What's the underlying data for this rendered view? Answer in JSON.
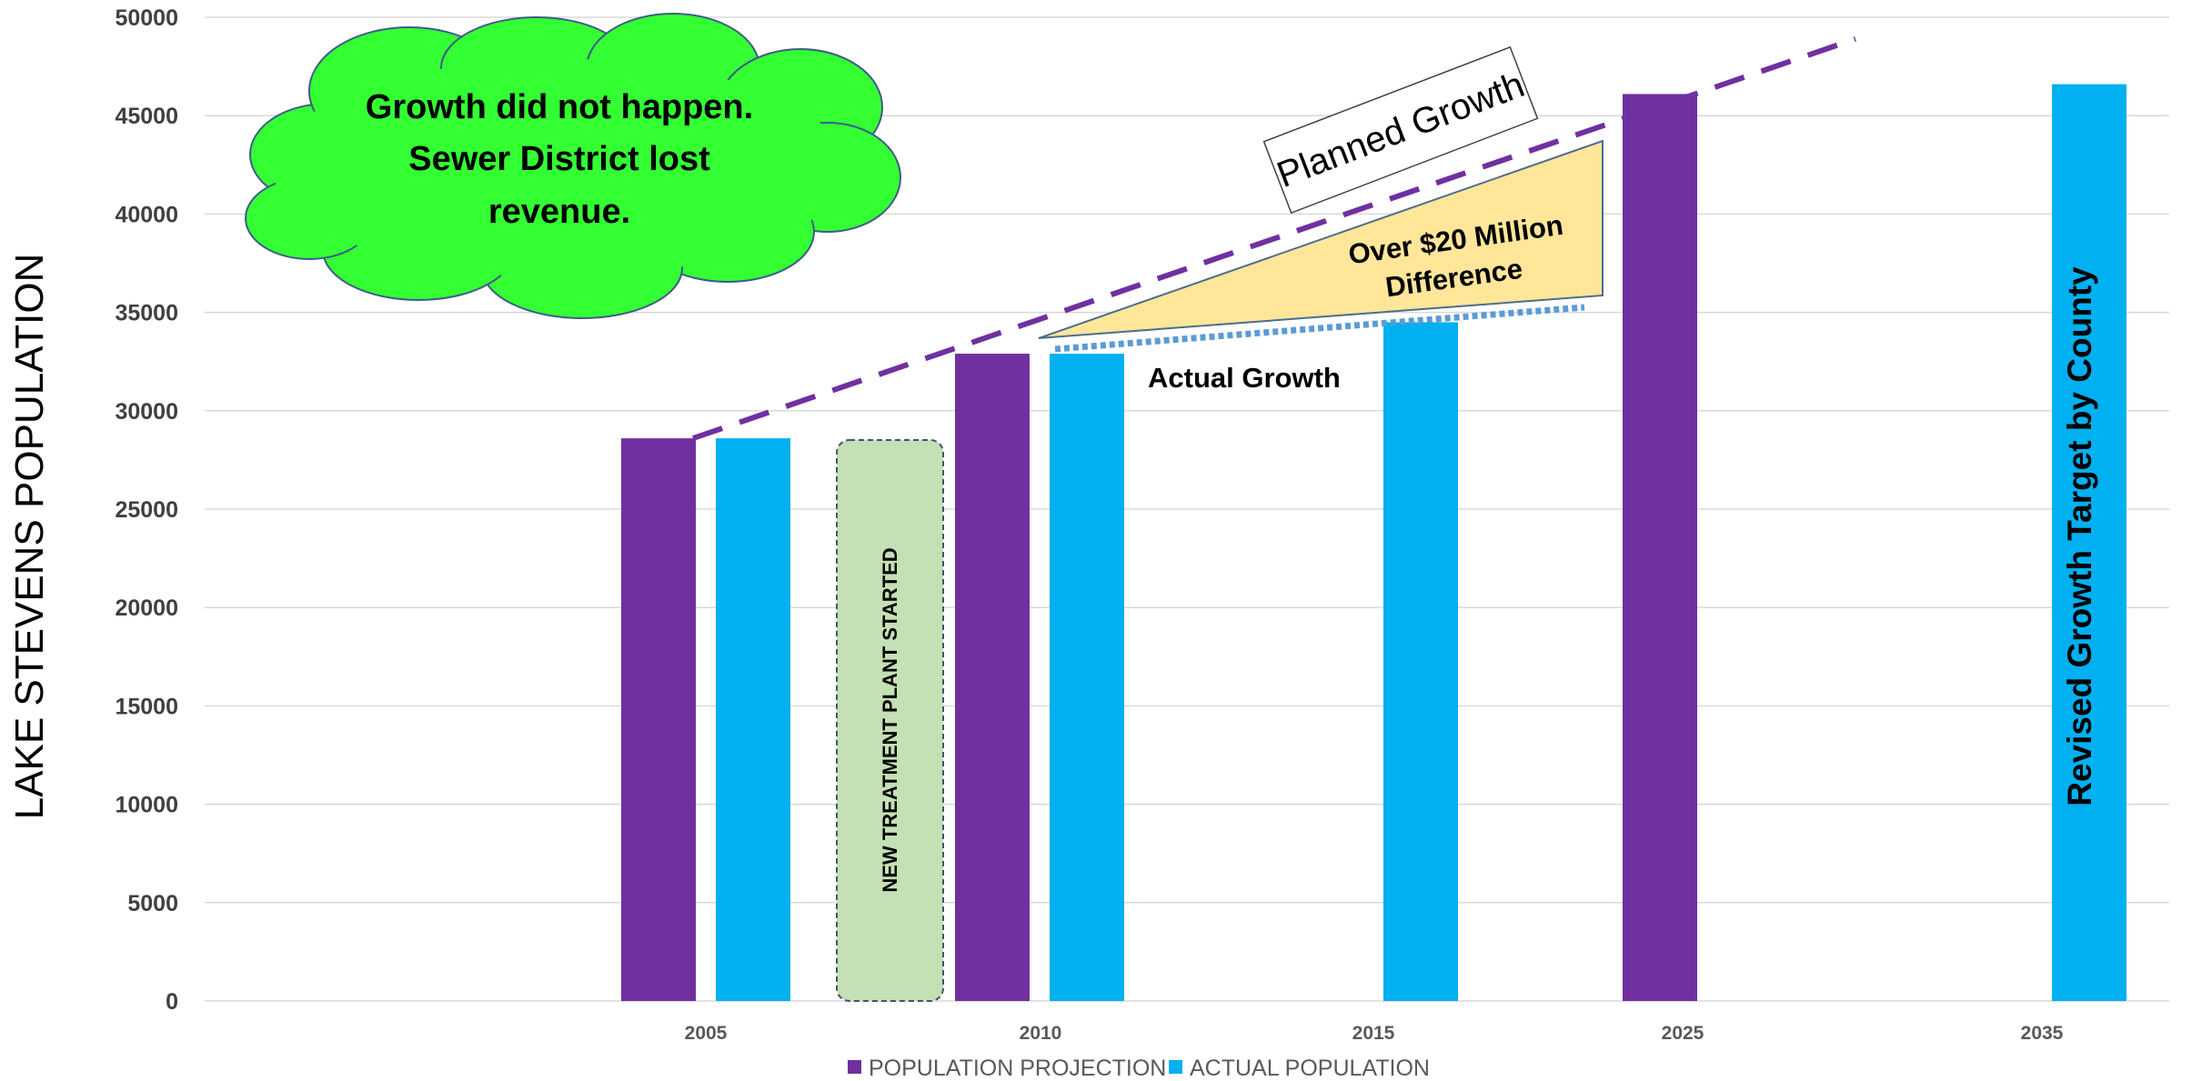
{
  "chart_data": {
    "type": "bar",
    "categories": [
      "2005",
      "2010",
      "2015",
      "2025",
      "2035"
    ],
    "series": [
      {
        "name": "POPULATION PROJECTION",
        "color": "#7030A0",
        "values": [
          28600,
          32900,
          null,
          46100,
          null
        ]
      },
      {
        "name": "ACTUAL POPULATION",
        "color": "#00B0F0",
        "values": [
          28600,
          32900,
          34500,
          null,
          46600
        ]
      }
    ],
    "ylabel": "LAKE STEVENS POPULATION",
    "xlabel": "",
    "ylim": [
      0,
      50000
    ],
    "yticks": [
      "0",
      "5000",
      "10000",
      "15000",
      "20000",
      "25000",
      "30000",
      "35000",
      "40000",
      "45000",
      "50000"
    ],
    "grid": true,
    "legend_position": "bottom",
    "trend_lines": {
      "planned_growth": {
        "label": "Planned Growth",
        "color": "#7030A0",
        "style": "dashed",
        "points": [
          [
            2005,
            28600
          ],
          [
            2010,
            32900
          ],
          [
            2025,
            46100
          ],
          [
            2028,
            48900
          ]
        ]
      },
      "actual_growth": {
        "label": "Actual Growth",
        "color": "#5B9BD5",
        "style": "dotted",
        "points": [
          [
            2010,
            33200
          ],
          [
            2015,
            34500
          ],
          [
            2021,
            35200
          ]
        ]
      }
    },
    "annotations": {
      "cloud_lines": [
        "Growth did not happen.",
        "Sewer District lost",
        "revenue."
      ],
      "cloud_color": "#33FF33",
      "difference_lines": [
        "Over $20 Million",
        "Difference"
      ],
      "difference_color": "#FFE699",
      "treatment_plant": "NEW TREATMENT PLANT STARTED",
      "treatment_plant_color": "#C5E0B4",
      "revised_target": "Revised Growth Target by County"
    }
  }
}
